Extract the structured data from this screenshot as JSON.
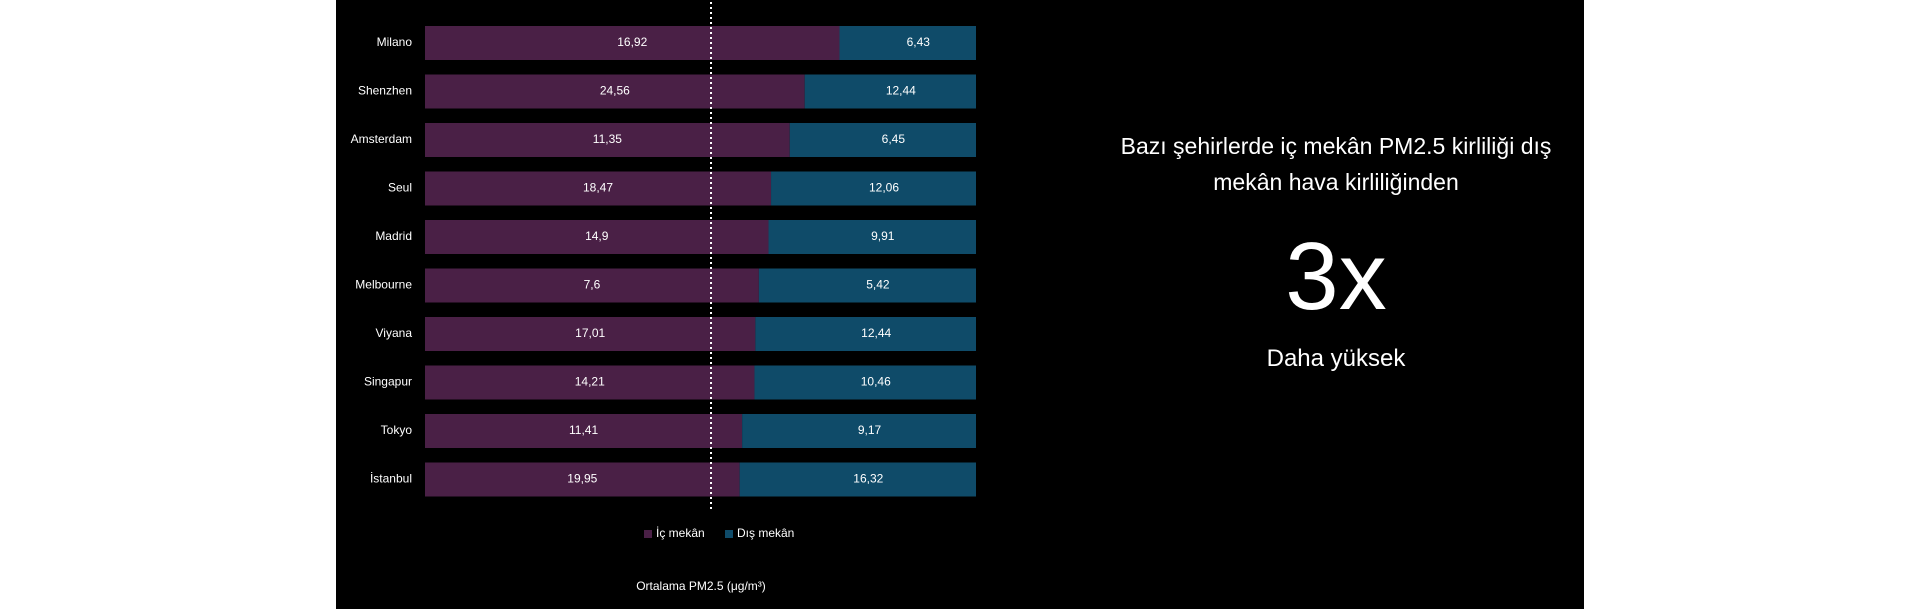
{
  "chart_data": {
    "type": "bar",
    "stacked": true,
    "orientation": "horizontal",
    "categories": [
      "Milano",
      "Shenzhen",
      "Amsterdam",
      "Seul",
      "Madrid",
      "Melbourne",
      "Viyana",
      "Singapur",
      "Tokyo",
      "İstanbul"
    ],
    "series": [
      {
        "name": "İç mekân",
        "color": "#4a2046",
        "values": [
          16.92,
          24.56,
          11.35,
          18.47,
          14.9,
          7.6,
          17.01,
          14.21,
          11.41,
          19.95
        ],
        "labels": [
          "16,92",
          "24,56",
          "11,35",
          "18,47",
          "14,9",
          "7,6",
          "17,01",
          "14,21",
          "11,41",
          "19,95"
        ]
      },
      {
        "name": "Dış mekân",
        "color": "#0f4b69",
        "values": [
          6.43,
          12.44,
          6.45,
          12.06,
          9.91,
          5.42,
          12.44,
          10.46,
          9.17,
          16.32
        ],
        "labels": [
          "6,43",
          "12,44",
          "6,45",
          "12,06",
          "9,91",
          "5,42",
          "12,44",
          "10,46",
          "9,17",
          "16,32"
        ]
      }
    ],
    "normalized": true,
    "reference_line": 0.5,
    "xlabel": "Ortalama PM2.5 (μg/m³)",
    "ylabel": "",
    "title": "",
    "legend": "bottom",
    "grid": false
  },
  "callout": {
    "headline": "Bazı şehirlerde iç mekân PM2.5 kirliliği dış mekân hava kirliliğinden",
    "figure": "3x",
    "caption": "Daha yüksek"
  }
}
